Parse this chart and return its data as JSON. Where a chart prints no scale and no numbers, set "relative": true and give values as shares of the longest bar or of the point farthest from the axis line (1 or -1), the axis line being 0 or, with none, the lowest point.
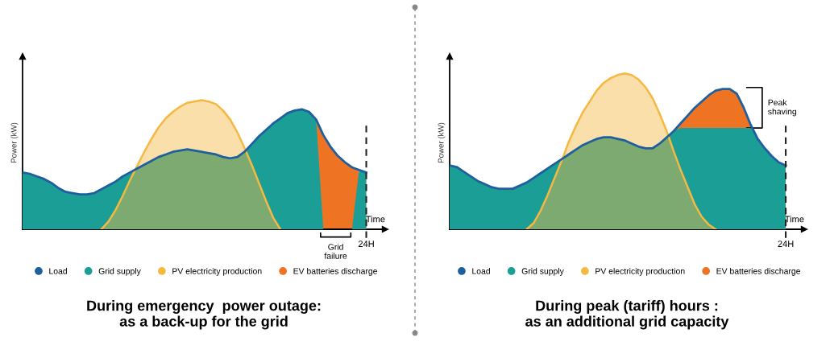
{
  "chart_data": [
    {
      "type": "area",
      "relative": true,
      "title": "During emergency  power outage:\nas a back-up for the grid",
      "xlabel": "Time",
      "ylabel": "Power (kW)",
      "legend": "bottom",
      "categories": [
        null,
        null,
        null,
        null,
        null,
        null,
        null,
        null,
        null,
        null,
        null,
        null,
        null,
        null,
        null,
        null,
        null,
        null,
        null,
        null,
        null,
        null,
        null,
        null,
        null,
        null,
        null,
        null,
        null,
        null,
        null,
        null,
        null,
        null,
        null,
        null,
        null,
        null,
        null,
        null,
        null,
        null,
        null,
        null,
        null,
        null,
        null,
        null,
        null
      ],
      "ref_lines": [
        {
          "axis": "x",
          "label": "24H",
          "color": "#222222",
          "line_style": "dashed"
        }
      ],
      "annotations": [
        "Grid\nfailure"
      ],
      "series": [
        {
          "name": "Load",
          "type": "line",
          "color": "#1f5f9e",
          "values": [
            0.44,
            0.43,
            0.41,
            0.39,
            0.36,
            0.32,
            0.29,
            0.28,
            0.27,
            0.27,
            0.28,
            0.31,
            0.34,
            0.37,
            0.41,
            0.44,
            0.47,
            0.5,
            0.53,
            0.56,
            0.58,
            0.6,
            0.61,
            0.62,
            0.61,
            0.6,
            0.59,
            0.58,
            0.56,
            0.55,
            0.56,
            0.6,
            0.66,
            0.72,
            0.77,
            0.82,
            0.86,
            0.9,
            0.92,
            0.93,
            0.91,
            0.85,
            0.73,
            0.64,
            0.57,
            0.52,
            0.48,
            0.46,
            0.44
          ]
        },
        {
          "name": "Grid supply",
          "color": "#1a9e96",
          "values": [
            0.44,
            0.43,
            0.41,
            0.39,
            0.36,
            0.32,
            0.29,
            0.28,
            0.27,
            0.27,
            0.28,
            0.31,
            0.34,
            0.37,
            0.41,
            0.44,
            0.47,
            0.5,
            0.53,
            0.56,
            0.58,
            0.6,
            0.61,
            0.62,
            0.61,
            0.6,
            0.59,
            0.58,
            0.56,
            0.55,
            0.56,
            0.6,
            0.66,
            0.72,
            0.77,
            0.82,
            0.86,
            0.9,
            0.92,
            0.93,
            0.91,
            0.85,
            0,
            0,
            0,
            0,
            0,
            0.46,
            0.44
          ]
        },
        {
          "name": "PV electricity production",
          "color": "#f5b942",
          "values": [
            null,
            null,
            null,
            null,
            null,
            null,
            null,
            null,
            null,
            null,
            null,
            0,
            0.06,
            0.15,
            0.26,
            0.38,
            0.49,
            0.6,
            0.7,
            0.79,
            0.86,
            0.91,
            0.95,
            0.98,
            0.99,
            1.0,
            0.99,
            0.97,
            0.92,
            0.85,
            0.75,
            0.63,
            0.5,
            0.36,
            0.22,
            0.09,
            0,
            null,
            null,
            null,
            null,
            null,
            null,
            null,
            null,
            null,
            null,
            null,
            null
          ]
        },
        {
          "name": "EV batteries discharge",
          "color": "#ee7424",
          "values": [
            null,
            null,
            null,
            null,
            null,
            null,
            null,
            null,
            null,
            null,
            null,
            null,
            null,
            null,
            null,
            null,
            null,
            null,
            null,
            null,
            null,
            null,
            null,
            null,
            null,
            null,
            null,
            null,
            null,
            null,
            null,
            null,
            null,
            null,
            null,
            null,
            null,
            null,
            null,
            null,
            null,
            0.85,
            0.73,
            0.64,
            0.57,
            0.52,
            0.48,
            0.46,
            null
          ]
        }
      ]
    },
    {
      "type": "area",
      "relative": true,
      "title": "During peak (tariff) hours :\nas an additional grid capacity",
      "xlabel": "Time",
      "ylabel": "Power (kW)",
      "legend": "bottom",
      "categories": [
        null,
        null,
        null,
        null,
        null,
        null,
        null,
        null,
        null,
        null,
        null,
        null,
        null,
        null,
        null,
        null,
        null,
        null,
        null,
        null,
        null,
        null,
        null,
        null,
        null,
        null,
        null,
        null,
        null,
        null,
        null,
        null,
        null,
        null,
        null,
        null,
        null,
        null,
        null,
        null,
        null,
        null,
        null,
        null,
        null,
        null,
        null,
        null,
        null
      ],
      "ref_lines": [
        {
          "axis": "x",
          "label": "24H",
          "color": "#222222",
          "line_style": "dashed"
        }
      ],
      "annotations": [
        "Peak\nshaving"
      ],
      "series": [
        {
          "name": "Load",
          "type": "line",
          "color": "#1f5f9e",
          "values": [
            0.41,
            0.4,
            0.37,
            0.34,
            0.31,
            0.29,
            0.27,
            0.26,
            0.26,
            0.26,
            0.28,
            0.3,
            0.33,
            0.36,
            0.39,
            0.42,
            0.45,
            0.48,
            0.51,
            0.54,
            0.56,
            0.58,
            0.59,
            0.59,
            0.58,
            0.57,
            0.55,
            0.53,
            0.52,
            0.52,
            0.55,
            0.59,
            0.63,
            0.68,
            0.73,
            0.78,
            0.82,
            0.86,
            0.89,
            0.9,
            0.9,
            0.87,
            0.78,
            0.67,
            0.58,
            0.52,
            0.47,
            0.43,
            0.41
          ]
        },
        {
          "name": "Grid supply",
          "color": "#1a9e96",
          "values": [
            0.41,
            0.4,
            0.37,
            0.34,
            0.31,
            0.29,
            0.27,
            0.26,
            0.26,
            0.26,
            0.28,
            0.3,
            0.33,
            0.36,
            0.39,
            0.42,
            0.45,
            0.48,
            0.51,
            0.54,
            0.56,
            0.58,
            0.59,
            0.59,
            0.58,
            0.57,
            0.55,
            0.53,
            0.52,
            0.52,
            0.55,
            0.59,
            0.63,
            0.65,
            0.65,
            0.65,
            0.65,
            0.65,
            0.65,
            0.65,
            0.65,
            0.65,
            0.65,
            0.65,
            0.58,
            0.52,
            0.47,
            0.43,
            0.41
          ]
        },
        {
          "name": "PV electricity production",
          "color": "#f5b942",
          "values": [
            null,
            null,
            null,
            null,
            null,
            null,
            null,
            null,
            null,
            null,
            null,
            0,
            0.04,
            0.12,
            0.22,
            0.33,
            0.44,
            0.56,
            0.66,
            0.75,
            0.82,
            0.89,
            0.94,
            0.97,
            0.99,
            1.0,
            0.99,
            0.96,
            0.91,
            0.84,
            0.74,
            0.63,
            0.5,
            0.38,
            0.27,
            0.16,
            0.08,
            0.03,
            0,
            null,
            null,
            null,
            null,
            null,
            null,
            null,
            null,
            null,
            null
          ]
        },
        {
          "name": "EV batteries discharge",
          "color": "#ee7424",
          "values": [
            null,
            null,
            null,
            null,
            null,
            null,
            null,
            null,
            null,
            null,
            null,
            null,
            null,
            null,
            null,
            null,
            null,
            null,
            null,
            null,
            null,
            null,
            null,
            null,
            null,
            null,
            null,
            null,
            null,
            null,
            null,
            null,
            0.63,
            0.68,
            0.73,
            0.78,
            0.82,
            0.86,
            0.89,
            0.9,
            0.9,
            0.87,
            0.78,
            0.67,
            0.58,
            null,
            null,
            null,
            null
          ]
        }
      ]
    }
  ]
}
